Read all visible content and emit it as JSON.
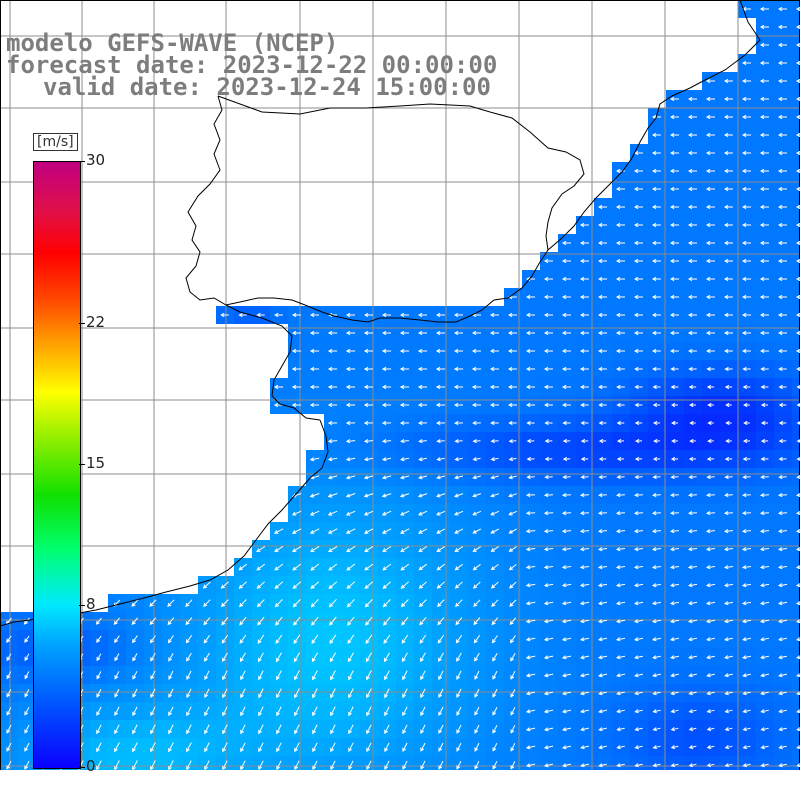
{
  "header": {
    "line1": "modelo GEFS-WAVE (NCEP)",
    "line2": "forecast date: 2023-12-22 00:00:00",
    "line3": "valid date: 2023-12-24 15:00:00"
  },
  "colorbar": {
    "unit": "[m/s]",
    "min": 0,
    "max": 30,
    "ticks": [
      {
        "value": 30,
        "label": "30"
      },
      {
        "value": 22,
        "label": "22"
      },
      {
        "value": 15,
        "label": "15"
      },
      {
        "value": 8,
        "label": "8"
      },
      {
        "value": 0,
        "label": "0"
      }
    ]
  },
  "map": {
    "variable": "wind speed",
    "land_color": "#ffffff",
    "grid_color": "#8c8c8c",
    "coast_color": "#000000",
    "arrow_color": "#ffffff"
  }
}
